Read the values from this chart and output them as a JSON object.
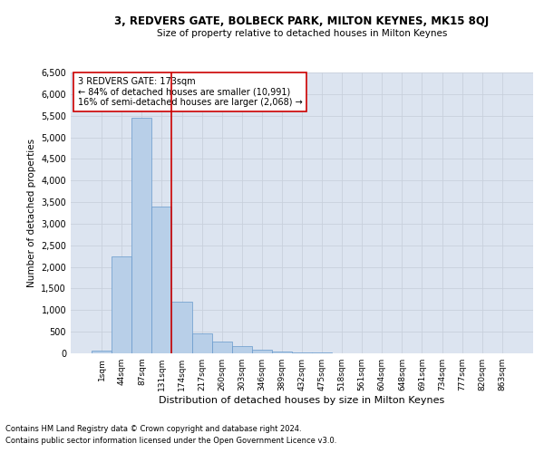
{
  "title": "3, REDVERS GATE, BOLBECK PARK, MILTON KEYNES, MK15 8QJ",
  "subtitle": "Size of property relative to detached houses in Milton Keynes",
  "xlabel": "Distribution of detached houses by size in Milton Keynes",
  "ylabel": "Number of detached properties",
  "footnote1": "Contains HM Land Registry data © Crown copyright and database right 2024.",
  "footnote2": "Contains public sector information licensed under the Open Government Licence v3.0.",
  "bar_labels": [
    "1sqm",
    "44sqm",
    "87sqm",
    "131sqm",
    "174sqm",
    "217sqm",
    "260sqm",
    "303sqm",
    "346sqm",
    "389sqm",
    "432sqm",
    "475sqm",
    "518sqm",
    "561sqm",
    "604sqm",
    "648sqm",
    "691sqm",
    "734sqm",
    "777sqm",
    "820sqm",
    "863sqm"
  ],
  "bar_values": [
    55,
    2250,
    5450,
    3400,
    1200,
    460,
    270,
    160,
    75,
    45,
    20,
    15,
    0,
    0,
    0,
    0,
    0,
    0,
    0,
    0,
    0
  ],
  "bar_color": "#b8cfe8",
  "bar_edge_color": "#6699cc",
  "vline_color": "#cc0000",
  "annotation_line1": "3 REDVERS GATE: 173sqm",
  "annotation_line2": "← 84% of detached houses are smaller (10,991)",
  "annotation_line3": "16% of semi-detached houses are larger (2,068) →",
  "annotation_box_color": "#cc0000",
  "ylim": [
    0,
    6500
  ],
  "yticks": [
    0,
    500,
    1000,
    1500,
    2000,
    2500,
    3000,
    3500,
    4000,
    4500,
    5000,
    5500,
    6000,
    6500
  ],
  "grid_color": "#c8d0dc",
  "bg_color": "#dce4f0"
}
